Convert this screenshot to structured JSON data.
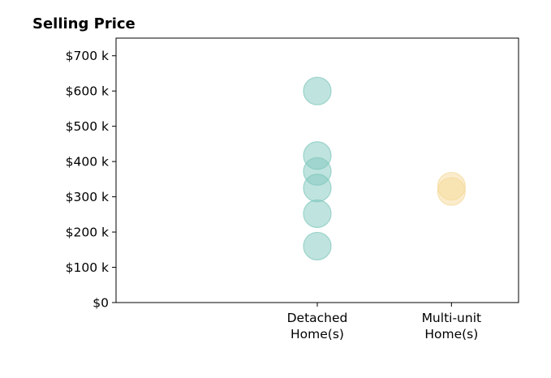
{
  "chart_data": {
    "type": "scatter",
    "title": "Selling Price",
    "xlabel": "",
    "ylabel": "",
    "categories": [
      "Detached\nHome(s)",
      "Multi-unit\nHome(s)"
    ],
    "ylim": [
      0,
      750000
    ],
    "yticks": [
      0,
      100000,
      200000,
      300000,
      400000,
      500000,
      600000,
      700000
    ],
    "ytick_labels": [
      "$0",
      "$100 k",
      "$200 k",
      "$300 k",
      "$400 k",
      "$500 k",
      "$600 k",
      "$700 k"
    ],
    "grid": false,
    "legend": "none",
    "series": [
      {
        "category": "Detached\nHome(s)",
        "color": "#7fc8bd",
        "values": [
          600000,
          417000,
          372000,
          325000,
          252000,
          160000
        ]
      },
      {
        "category": "Multi-unit\nHome(s)",
        "color": "#f5d99a",
        "values": [
          330000,
          315000
        ]
      }
    ]
  }
}
